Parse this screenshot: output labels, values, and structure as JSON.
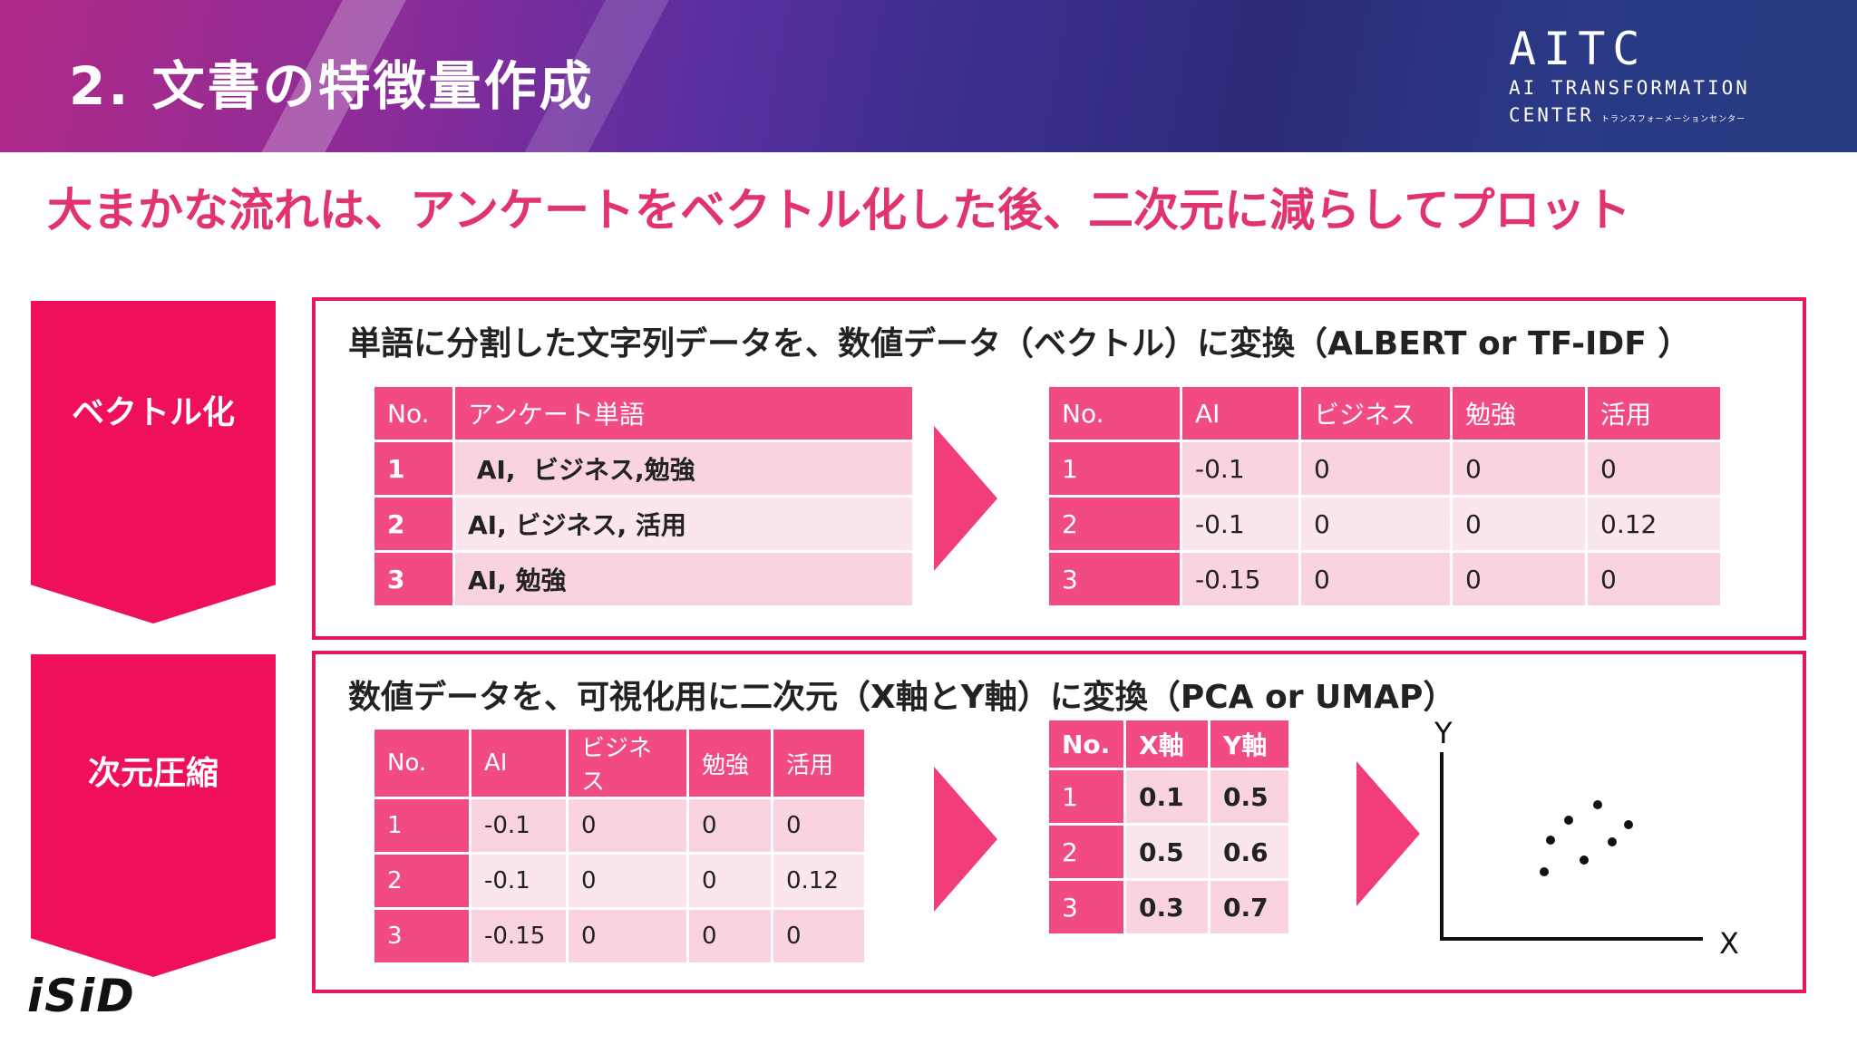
{
  "header": {
    "title": "2. 文書の特徴量作成"
  },
  "logo": {
    "big": "AITC",
    "line1": "AI TRANSFORMATION",
    "line2": "CENTER",
    "small": "トランスフォーメーションセンター"
  },
  "subtitle": "大まかな流れは、アンケートをベクトル化した後、二次元に減らしてプロット",
  "step1": {
    "label": "ベクトル化",
    "panel_title": "単語に分割した文字列データを、数値データ（ベクトル）に変換（ALBERT or TF-IDF ）",
    "left_table": {
      "headers": [
        "No.",
        "アンケート単語"
      ],
      "rows": [
        [
          "1",
          " AI,  ビジネス,勉強"
        ],
        [
          "2",
          "AI, ビジネス, 活用"
        ],
        [
          "3",
          "AI, 勉強"
        ]
      ]
    },
    "right_table": {
      "headers": [
        "No.",
        "AI",
        "ビジネス",
        "勉強",
        "活用"
      ],
      "rows": [
        [
          "1",
          "-0.1",
          "0",
          "0",
          "0"
        ],
        [
          "2",
          "-0.1",
          "0",
          "0",
          "0.12"
        ],
        [
          "3",
          "-0.15",
          "0",
          "0",
          "0"
        ]
      ]
    }
  },
  "step2": {
    "label": "次元圧縮",
    "panel_title": "数値データを、可視化用に二次元（X軸とY軸）に変換（PCA or UMAP）",
    "left_table": {
      "headers": [
        "No.",
        "AI",
        "ビジネス",
        "勉強",
        "活用"
      ],
      "rows": [
        [
          "1",
          "-0.1",
          "0",
          "0",
          "0"
        ],
        [
          "2",
          "-0.1",
          "0",
          "0",
          "0.12"
        ],
        [
          "3",
          "-0.15",
          "0",
          "0",
          "0"
        ]
      ]
    },
    "right_table": {
      "headers": [
        "No.",
        "X軸",
        "Y軸"
      ],
      "rows": [
        [
          "1",
          "0.1",
          "0.5"
        ],
        [
          "2",
          "0.5",
          "0.6"
        ],
        [
          "3",
          "0.3",
          "0.7"
        ]
      ]
    },
    "plot": {
      "x_label": "X",
      "y_label": "Y"
    }
  },
  "footer": {
    "brand": "iSiD"
  },
  "colors": {
    "accent": "#ef0f5b",
    "subtitle": "#e0336f"
  }
}
